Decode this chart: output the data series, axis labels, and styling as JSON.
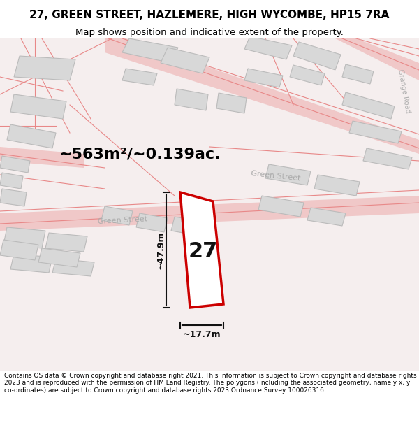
{
  "title": "27, GREEN STREET, HAZLEMERE, HIGH WYCOMBE, HP15 7RA",
  "subtitle": "Map shows position and indicative extent of the property.",
  "area_text": "~563m²/~0.139ac.",
  "width_text": "~17.7m",
  "height_text": "~47.9m",
  "property_number": "27",
  "footer": "Contains OS data © Crown copyright and database right 2021. This information is subject to Crown copyright and database rights 2023 and is reproduced with the permission of HM Land Registry. The polygons (including the associated geometry, namely x, y co-ordinates) are subject to Crown copyright and database rights 2023 Ordnance Survey 100026316.",
  "bg_color": "#ffffff",
  "map_bg": "#f5f0f0",
  "road_color": "#f0c8c8",
  "building_color": "#d8d8d8",
  "building_edge": "#cccccc",
  "property_fill": "#ffffff",
  "property_edge": "#cc0000",
  "road_label_color": "#aaaaaa",
  "dim_color": "#111111",
  "title_color": "#000000",
  "footer_color": "#000000",
  "header_bg": "#ffffff",
  "footer_bg": "#ffffff"
}
